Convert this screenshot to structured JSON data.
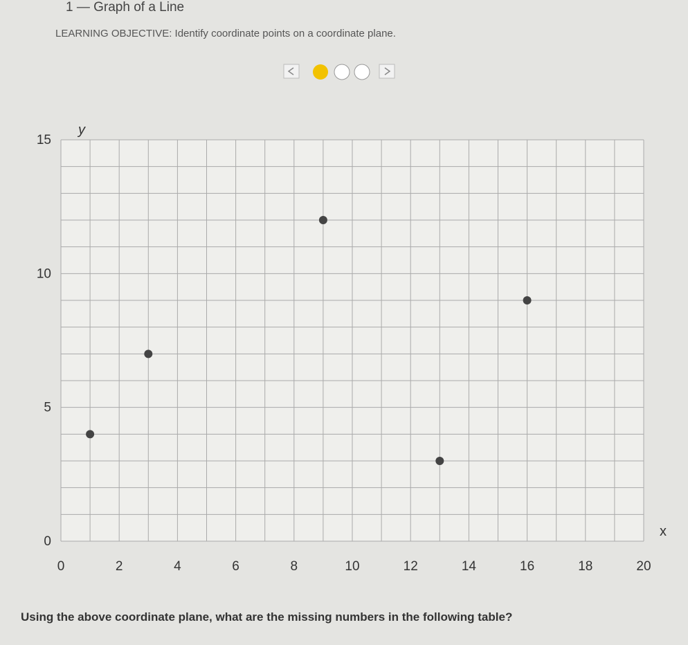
{
  "header": {
    "title": "1 — Graph of a Line",
    "objective": "LEARNING OBJECTIVE: Identify coordinate points on a coordinate plane."
  },
  "chart_data": {
    "type": "scatter",
    "x_label": "x",
    "y_label": "y",
    "x": [
      1,
      3,
      9,
      13,
      16
    ],
    "values": [
      4,
      7,
      12,
      3,
      9
    ],
    "color": "#444444",
    "xlim": [
      0,
      20
    ],
    "ylim": [
      0,
      15
    ],
    "xticks": [
      0,
      2,
      4,
      6,
      8,
      10,
      12,
      14,
      16,
      18,
      20
    ],
    "yticks": [
      0,
      5,
      10,
      15
    ],
    "xgrid": [
      0,
      1,
      2,
      3,
      4,
      5,
      6,
      7,
      8,
      9,
      10,
      11,
      12,
      13,
      14,
      15,
      16,
      17,
      18,
      19,
      20
    ],
    "ygrid": [
      0,
      1,
      2,
      3,
      4,
      5,
      6,
      7,
      8,
      9,
      10,
      11,
      12,
      13,
      14,
      15
    ]
  },
  "question": "Using the above coordinate plane, what are the missing numbers in the following table?"
}
